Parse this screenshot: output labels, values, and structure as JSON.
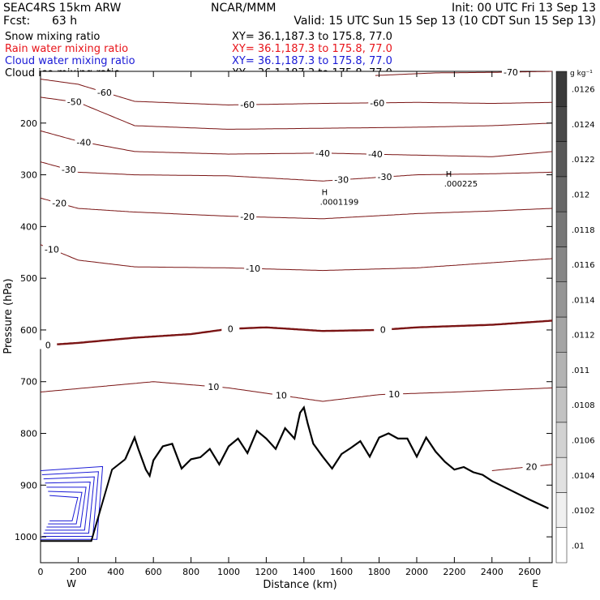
{
  "header": {
    "model": "SEAC4RS 15km ARW",
    "org": "NCAR/MMM",
    "init": "Init: 00 UTC Fri 13 Sep 13",
    "fcst_label": "Fcst:",
    "fcst_value": "63 h",
    "valid": "Valid: 15 UTC Sun 15 Sep 13 (10 CDT Sun 15 Sep 13)"
  },
  "legend": [
    {
      "label": "Snow mixing ratio",
      "xy": "XY=  36.1,187.3 to 175.8, 77.0",
      "color": "#000000"
    },
    {
      "label": "Rain water mixing ratio",
      "xy": "XY=  36.1,187.3 to 175.8, 77.0",
      "color": "#e8141a"
    },
    {
      "label": "Cloud water mixing ratio",
      "xy": "XY=  36.1,187.3 to 175.8, 77.0",
      "color": "#1a1ad6"
    },
    {
      "label": "Cloud ice mixing ratio",
      "xy": "XY=  36.1,187.3 to 175.8, 77.0",
      "color": "#000000"
    }
  ],
  "chart_data": {
    "type": "contour",
    "xlabel": "Distance (km)",
    "ylabel": "Pressure (hPa)",
    "xlim": [
      0,
      2720
    ],
    "ylim": [
      100,
      1050
    ],
    "x_ticks": [
      0,
      200,
      400,
      600,
      800,
      1000,
      1200,
      1400,
      1600,
      1800,
      2000,
      2200,
      2400,
      2600
    ],
    "y_ticks": [
      200,
      300,
      400,
      500,
      600,
      700,
      800,
      900,
      1000
    ],
    "x_end_labels": {
      "left": "W",
      "right": "E"
    },
    "colorbar": {
      "unit": "g kg⁻¹",
      "ticks": [
        ".01",
        ".0102",
        ".0104",
        ".0106",
        ".0108",
        ".011",
        ".0112",
        ".0114",
        ".0116",
        ".0118",
        ".012",
        ".0122",
        ".0124",
        ".0126"
      ],
      "color_low": "#ffffff",
      "color_high": "#3a3a3a"
    },
    "contour_color": "#7a1414",
    "temperature_contours": [
      {
        "level": "-70",
        "x": [
          1780,
          2100,
          2400,
          2720
        ],
        "p": [
          108,
          103,
          102,
          100
        ],
        "labels": [
          {
            "text": "-70",
            "x": 2500
          }
        ]
      },
      {
        "level": "-60",
        "x": [
          0,
          200,
          500,
          1000,
          1500,
          2000,
          2400,
          2720
        ],
        "p": [
          115,
          125,
          158,
          165,
          162,
          160,
          162,
          160
        ],
        "labels": [
          {
            "text": "-60",
            "x": 340
          },
          {
            "text": "-60",
            "x": 1100
          },
          {
            "text": "-60",
            "x": 1790
          }
        ]
      },
      {
        "level": "-50",
        "x": [
          0,
          200,
          500,
          1000,
          1500,
          2000,
          2400,
          2720
        ],
        "p": [
          150,
          160,
          205,
          212,
          210,
          208,
          205,
          200
        ],
        "labels": [
          {
            "text": "-50",
            "x": 180
          }
        ]
      },
      {
        "level": "-40",
        "x": [
          0,
          200,
          500,
          1000,
          1500,
          2000,
          2400,
          2720
        ],
        "p": [
          215,
          235,
          255,
          260,
          258,
          262,
          265,
          255
        ],
        "labels": [
          {
            "text": "-40",
            "x": 230
          },
          {
            "text": "-40",
            "x": 1500
          },
          {
            "text": "-40",
            "x": 1780
          }
        ]
      },
      {
        "level": "-30",
        "x": [
          0,
          200,
          500,
          1000,
          1500,
          2000,
          2400,
          2720
        ],
        "p": [
          275,
          295,
          300,
          302,
          312,
          300,
          298,
          295
        ],
        "labels": [
          {
            "text": "-30",
            "x": 150
          },
          {
            "text": "-30",
            "x": 1600
          },
          {
            "text": "-30",
            "x": 1830
          }
        ]
      },
      {
        "level": "-20",
        "x": [
          0,
          200,
          500,
          1000,
          1500,
          2000,
          2400,
          2720
        ],
        "p": [
          345,
          365,
          372,
          380,
          385,
          375,
          370,
          365
        ],
        "labels": [
          {
            "text": "-20",
            "x": 100
          },
          {
            "text": "-20",
            "x": 1100
          }
        ]
      },
      {
        "level": "-10",
        "x": [
          0,
          200,
          500,
          1000,
          1500,
          2000,
          2400,
          2720
        ],
        "p": [
          435,
          465,
          478,
          480,
          485,
          480,
          470,
          462
        ],
        "labels": [
          {
            "text": "-10",
            "x": 60
          },
          {
            "text": "-10",
            "x": 1130
          }
        ]
      },
      {
        "level": "0",
        "x": [
          0,
          200,
          500,
          800,
          1000,
          1200,
          1500,
          1800,
          2000,
          2400,
          2720
        ],
        "p": [
          630,
          625,
          615,
          608,
          598,
          595,
          602,
          600,
          595,
          590,
          582
        ],
        "labels": [
          {
            "text": "0",
            "x": 40
          },
          {
            "text": "0",
            "x": 1010
          },
          {
            "text": "0",
            "x": 1820
          }
        ]
      },
      {
        "level": "10",
        "x": [
          0,
          300,
          600,
          1000,
          1500,
          1800,
          2200,
          2720
        ],
        "p": [
          720,
          710,
          700,
          712,
          738,
          725,
          720,
          712
        ],
        "labels": [
          {
            "text": "10",
            "x": 920
          },
          {
            "text": "10",
            "x": 1280
          },
          {
            "text": "10",
            "x": 1880
          }
        ]
      },
      {
        "level": "20",
        "x": [
          2400,
          2720
        ],
        "p": [
          872,
          860
        ],
        "labels": [
          {
            "text": "20",
            "x": 2610
          }
        ]
      }
    ],
    "terrain": {
      "x": [
        450,
        500,
        520,
        560,
        580,
        600,
        650,
        700,
        750,
        800,
        850,
        900,
        950,
        1000,
        1050,
        1100,
        1150,
        1200,
        1250,
        1300,
        1350,
        1380,
        1400,
        1420,
        1450,
        1500,
        1550,
        1600,
        1650,
        1700,
        1750,
        1800,
        1850,
        1900,
        1950,
        2000,
        2050,
        2100,
        2150,
        2200,
        2250,
        2300,
        2350,
        2400,
        2500,
        2600,
        2700
      ],
      "p": [
        850,
        808,
        830,
        870,
        882,
        852,
        825,
        820,
        868,
        850,
        846,
        830,
        860,
        825,
        810,
        838,
        795,
        810,
        830,
        790,
        810,
        760,
        750,
        780,
        820,
        845,
        868,
        840,
        828,
        815,
        845,
        808,
        800,
        810,
        810,
        845,
        808,
        835,
        855,
        870,
        865,
        875,
        880,
        892,
        910,
        928,
        945
      ]
    },
    "maxima_markers": [
      {
        "text": "H",
        "value": ".0001199",
        "x": 1520,
        "p": 345
      },
      {
        "text": "H",
        "value": ".000225",
        "x": 2180,
        "p": 310
      }
    ]
  }
}
